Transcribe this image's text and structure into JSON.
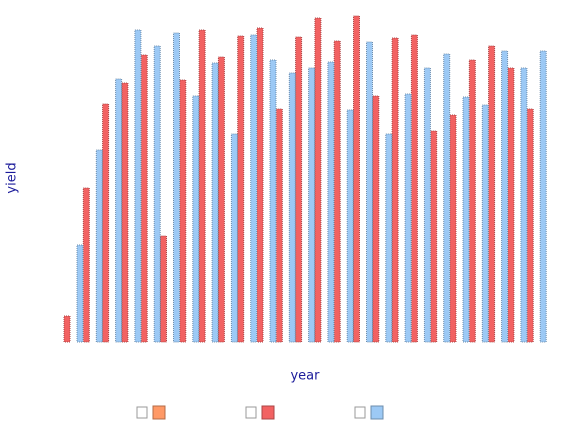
{
  "chart_data": {
    "type": "bar",
    "x_label": "year",
    "y_label": "yield",
    "ylim": [
      0,
      330
    ],
    "series": [
      {
        "color": "#ff9966",
        "values": [
          null,
          null,
          null,
          null,
          null,
          null,
          null,
          null,
          null,
          null,
          null,
          null,
          null,
          null,
          null,
          null,
          null,
          null,
          null,
          null,
          null,
          null,
          null,
          null,
          null
        ]
      },
      {
        "color": "#f26262",
        "values": [
          26,
          154,
          238,
          259,
          287,
          106,
          262,
          312,
          285,
          306,
          314,
          233,
          305,
          324,
          301,
          326,
          246,
          304,
          307,
          211,
          227,
          282,
          296,
          274,
          233
        ]
      },
      {
        "color": "#9cc9f5",
        "values": [
          97,
          192,
          263,
          312,
          296,
          309,
          246,
          279,
          208,
          307,
          282,
          269,
          274,
          280,
          232,
          300,
          208,
          248,
          274,
          288,
          245,
          237,
          291,
          274,
          291
        ]
      }
    ]
  }
}
